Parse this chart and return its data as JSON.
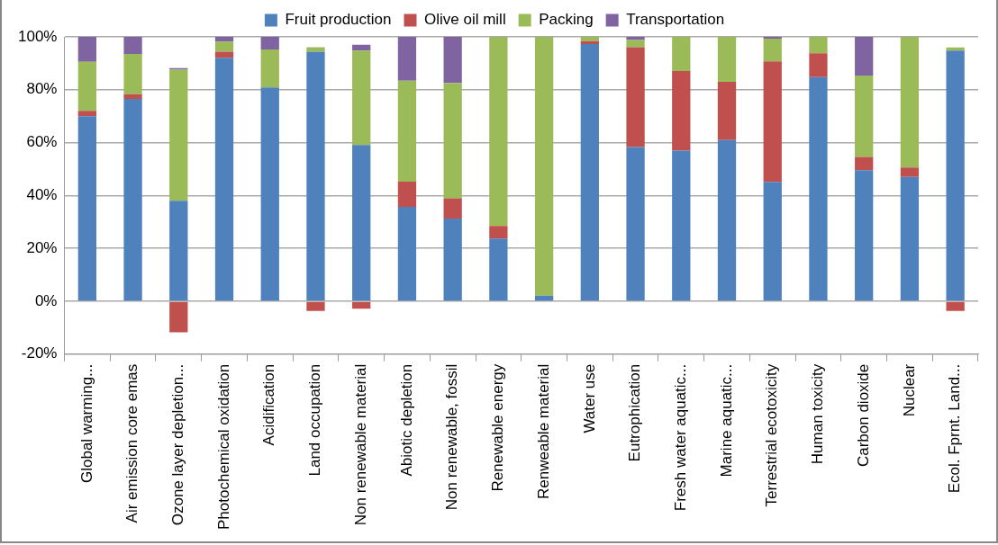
{
  "chart_data": {
    "type": "bar",
    "stacked": true,
    "legend": "top",
    "grid": "y",
    "categories": [
      "Global warming...",
      "Air emission core emas",
      "Ozone layer depletion...",
      "Photochemical oxidation",
      "Acidification",
      "Land occupation",
      "Non renewable material",
      "Abiotic depletion",
      "Non renewable, fossil",
      "Renewable energy",
      "Renweable material",
      "Water use",
      "Eutrophication",
      "Fresh water aquatic...",
      "Marine aquatic...",
      "Terrestrial ecotoxicity",
      "Human toxicity",
      "Carbon dioxide",
      "Nuclear",
      "Ecol. Fprnt. Land..."
    ],
    "series": [
      {
        "name": "Fruit production",
        "color": "#4f81bd",
        "values": [
          70,
          76.5,
          38,
          92.1,
          80.9,
          94.4,
          59.1,
          35.7,
          31.3,
          23.7,
          2.1,
          97.3,
          58.3,
          57,
          61,
          45.1,
          84.8,
          49.6,
          47,
          94.8
        ]
      },
      {
        "name": "Olive oil mill",
        "color": "#c0504d",
        "values": [
          2,
          1.8,
          -11.8,
          2.3,
          null,
          -3.7,
          -2.8,
          9.5,
          7.6,
          4.8,
          null,
          1.1,
          37.8,
          30.1,
          22,
          45.6,
          9,
          5,
          3.6,
          -3.7
        ]
      },
      {
        "name": "Packing",
        "color": "#9bbb59",
        "values": [
          18.6,
          15.2,
          49.6,
          3.8,
          14.3,
          1.7,
          35.7,
          38.2,
          43.7,
          71.5,
          97.9,
          1.6,
          2.7,
          12.9,
          17,
          8.6,
          6.2,
          30.8,
          49.4,
          1.2
        ]
      },
      {
        "name": "Transportation",
        "color": "#8064a2",
        "values": [
          9.4,
          6.5,
          0.6,
          1.8,
          4.8,
          null,
          2.2,
          16.6,
          17.4,
          null,
          null,
          null,
          1.2,
          null,
          null,
          0.7,
          null,
          14.6,
          null,
          null
        ]
      }
    ],
    "ylim": [
      -20,
      100
    ],
    "yticks": [
      {
        "value": -20,
        "label": "-20%"
      },
      {
        "value": 0,
        "label": "0%"
      },
      {
        "value": 20,
        "label": "20%"
      },
      {
        "value": 40,
        "label": "40%"
      },
      {
        "value": 60,
        "label": "60%"
      },
      {
        "value": 80,
        "label": "80%"
      },
      {
        "value": 100,
        "label": "100%"
      }
    ]
  }
}
